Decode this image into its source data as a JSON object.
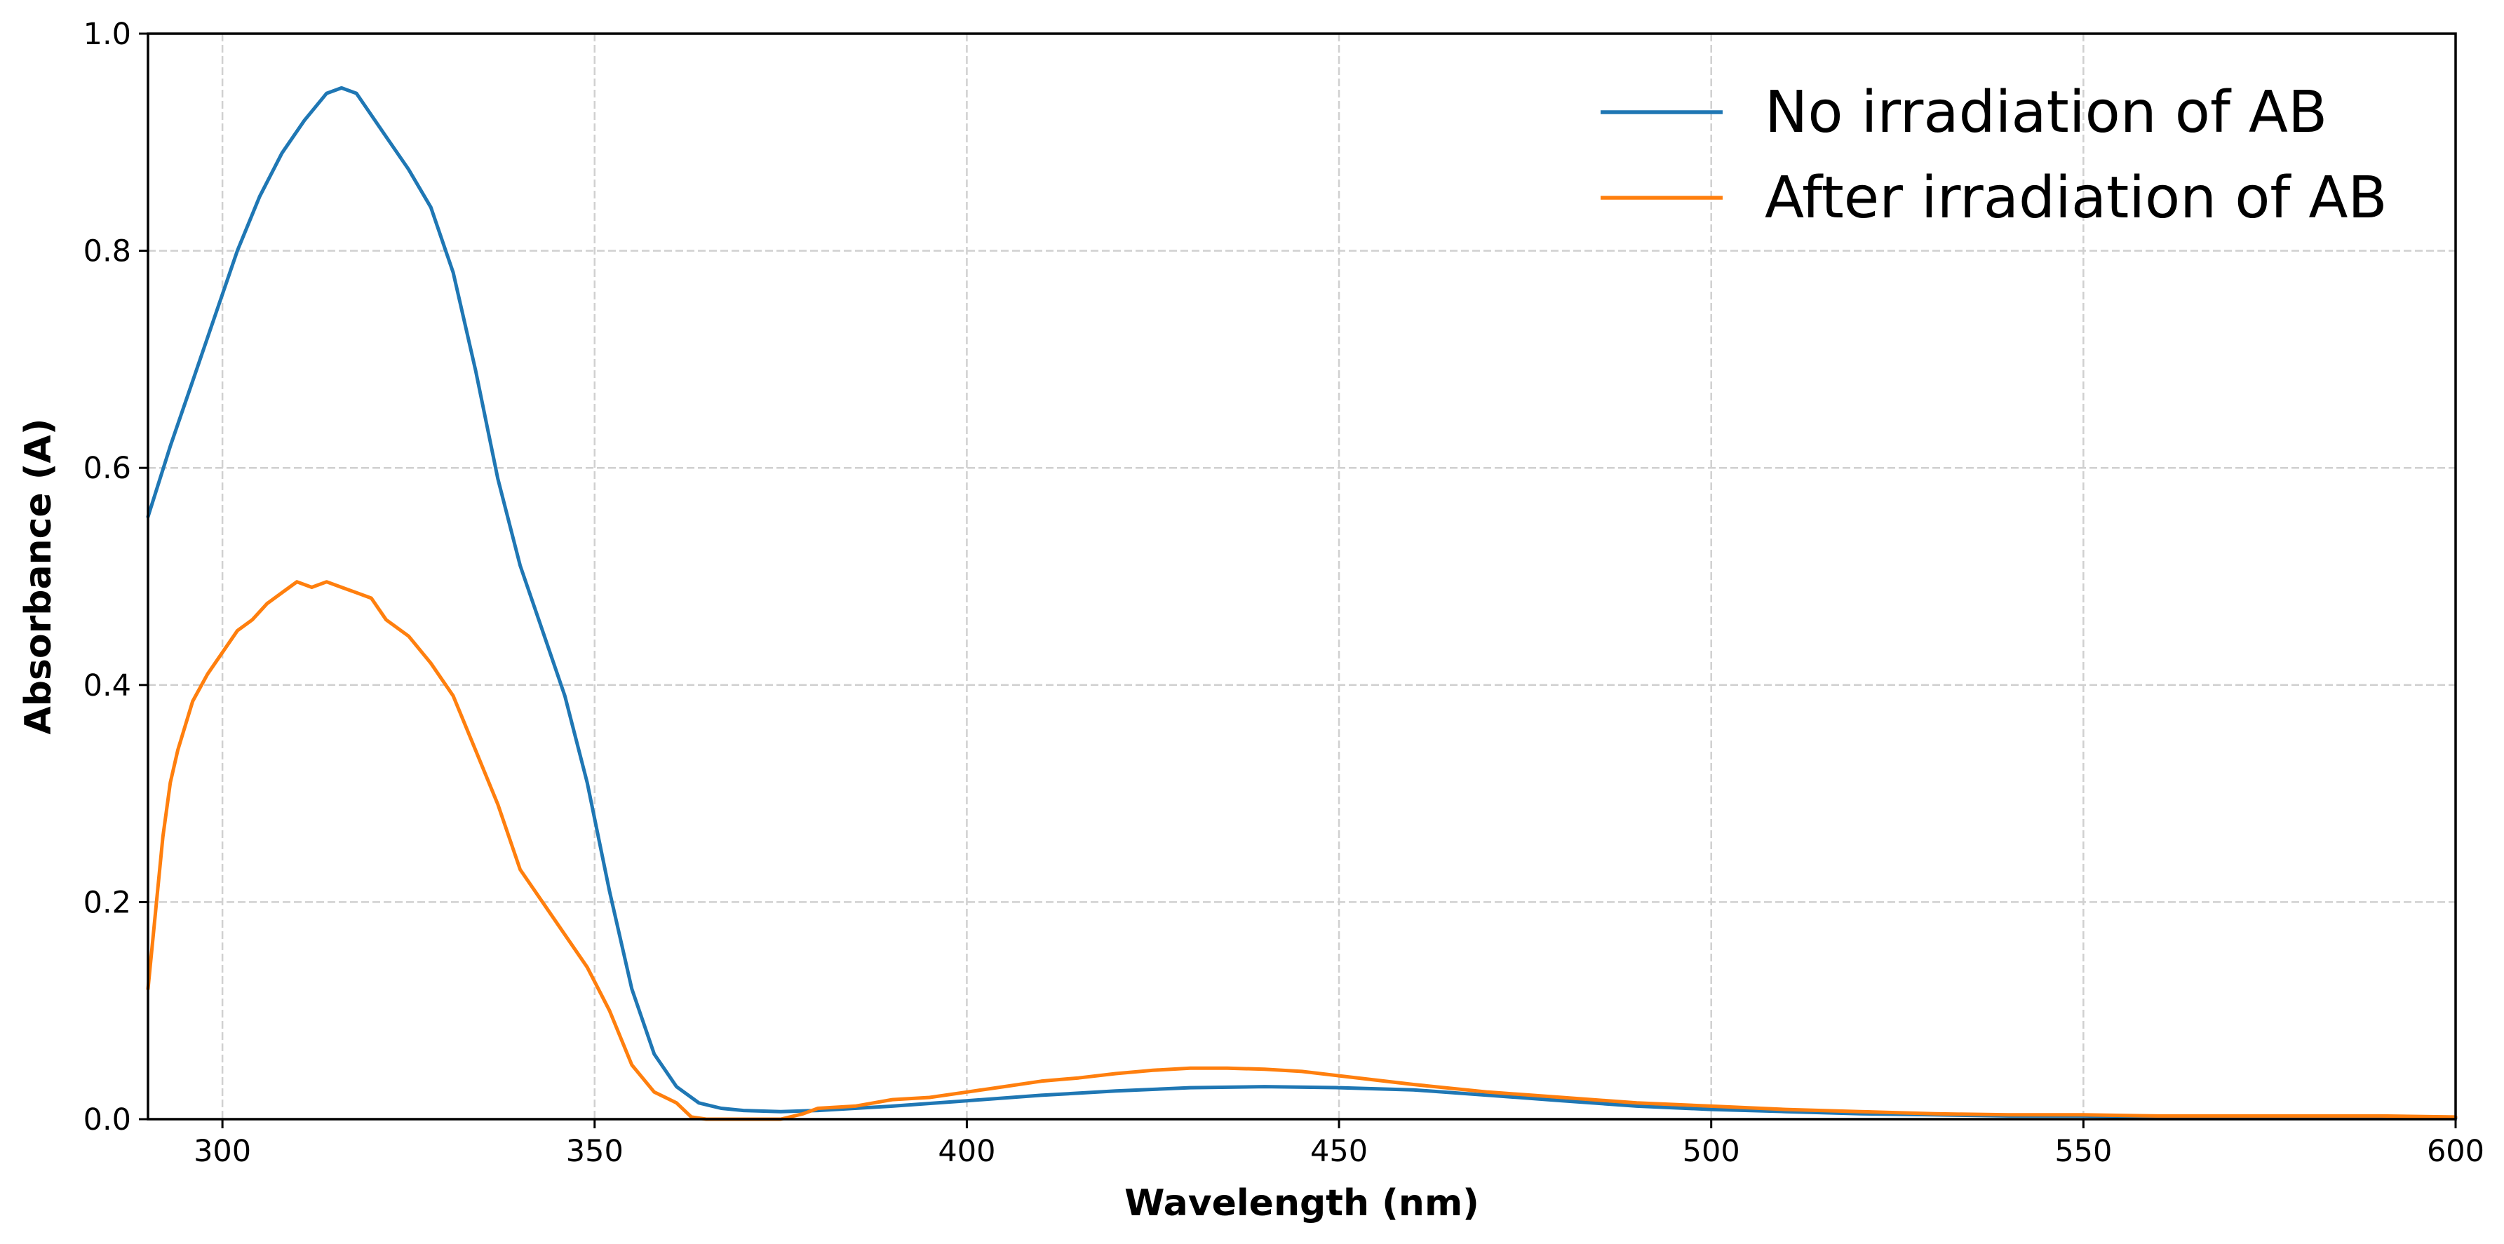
{
  "chart_data": {
    "type": "line",
    "title": "",
    "xlabel": "Wavelength (nm)",
    "ylabel": "Absorbance (A)",
    "xlim": [
      290,
      600
    ],
    "ylim": [
      0,
      1.0
    ],
    "xticks": [
      300,
      350,
      400,
      450,
      500,
      550,
      600
    ],
    "yticks": [
      0.0,
      0.2,
      0.4,
      0.6,
      0.8,
      1.0
    ],
    "xtick_labels": [
      "300",
      "350",
      "400",
      "450",
      "500",
      "550",
      "600"
    ],
    "ytick_labels": [
      "0.0",
      "0.2",
      "0.4",
      "0.6",
      "0.8",
      "1.0"
    ],
    "grid": true,
    "legend_position": "top-right",
    "zero_line": true,
    "series": [
      {
        "name": "No irradiation of AB",
        "color": "#1f77b4",
        "x": [
          290,
          293,
          296,
          299,
          302,
          305,
          308,
          311,
          314,
          316,
          318,
          320,
          322,
          325,
          328,
          331,
          334,
          337,
          340,
          343,
          346,
          349,
          352,
          355,
          358,
          361,
          364,
          367,
          370,
          375,
          380,
          385,
          390,
          400,
          410,
          420,
          430,
          440,
          450,
          460,
          470,
          480,
          490,
          500,
          510,
          520,
          530,
          540,
          550,
          560,
          570,
          580,
          590,
          600
        ],
        "y": [
          0.555,
          0.62,
          0.68,
          0.74,
          0.8,
          0.85,
          0.89,
          0.92,
          0.945,
          0.95,
          0.945,
          0.925,
          0.905,
          0.875,
          0.84,
          0.78,
          0.69,
          0.59,
          0.51,
          0.45,
          0.39,
          0.31,
          0.21,
          0.12,
          0.06,
          0.03,
          0.015,
          0.01,
          0.008,
          0.007,
          0.008,
          0.01,
          0.012,
          0.017,
          0.022,
          0.026,
          0.029,
          0.03,
          0.029,
          0.027,
          0.022,
          0.017,
          0.012,
          0.009,
          0.007,
          0.005,
          0.004,
          0.003,
          0.003,
          0.002,
          0.002,
          0.002,
          0.001,
          0.001
        ]
      },
      {
        "name": "After irradiation of AB",
        "color": "#ff7f0e",
        "x": [
          290,
          291,
          292,
          293,
          294,
          296,
          298,
          300,
          302,
          304,
          306,
          308,
          310,
          312,
          314,
          316,
          318,
          320,
          322,
          325,
          328,
          331,
          334,
          337,
          340,
          343,
          346,
          349,
          352,
          355,
          358,
          361,
          363,
          365,
          370,
          375,
          378,
          380,
          385,
          390,
          395,
          400,
          405,
          410,
          415,
          420,
          425,
          430,
          435,
          440,
          445,
          450,
          460,
          470,
          480,
          490,
          500,
          510,
          520,
          530,
          540,
          550,
          560,
          570,
          580,
          590,
          600
        ],
        "y": [
          0.12,
          0.19,
          0.26,
          0.31,
          0.34,
          0.385,
          0.41,
          0.43,
          0.45,
          0.46,
          0.475,
          0.485,
          0.495,
          0.49,
          0.495,
          0.49,
          0.485,
          0.48,
          0.46,
          0.445,
          0.42,
          0.39,
          0.34,
          0.29,
          0.23,
          0.2,
          0.17,
          0.14,
          0.1,
          0.05,
          0.025,
          0.015,
          0.002,
          0.0,
          0.0,
          0.0,
          0.005,
          0.01,
          0.012,
          0.018,
          0.02,
          0.025,
          0.03,
          0.035,
          0.038,
          0.042,
          0.045,
          0.047,
          0.047,
          0.046,
          0.044,
          0.04,
          0.032,
          0.025,
          0.02,
          0.015,
          0.012,
          0.009,
          0.007,
          0.005,
          0.004,
          0.004,
          0.003,
          0.003,
          0.003,
          0.003,
          0.002
        ]
      }
    ]
  }
}
